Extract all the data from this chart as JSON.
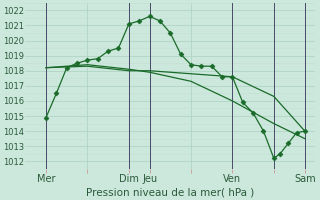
{
  "bg_color": "#cce8dc",
  "grid_color_major": "#b0d4c4",
  "grid_color_minor": "#c4e0d4",
  "line_color": "#1a6b2a",
  "title": "Pression niveau de la mer( hPa )",
  "ylim": [
    1011.5,
    1022.5
  ],
  "yticks": [
    1012,
    1013,
    1014,
    1015,
    1016,
    1017,
    1018,
    1019,
    1020,
    1021,
    1022
  ],
  "xlim": [
    0,
    14
  ],
  "xtick_labels": [
    "Mer",
    "",
    "Dim",
    "Jeu",
    "",
    "Ven",
    "",
    "Sam"
  ],
  "xtick_positions": [
    1,
    3,
    5,
    6,
    8,
    10,
    12,
    13.5
  ],
  "vline_positions": [
    1,
    5,
    6,
    10,
    12,
    13.5
  ],
  "series1_x": [
    1,
    1.5,
    2,
    2.5,
    3,
    3.5,
    4,
    4.5,
    5,
    5.5,
    6,
    6.5,
    7,
    7.5,
    8,
    8.5,
    9,
    9.5,
    10,
    10.5,
    11,
    11.5,
    12,
    12.3,
    12.7,
    13.1,
    13.5
  ],
  "series1_y": [
    1014.9,
    1016.5,
    1018.2,
    1018.5,
    1018.7,
    1018.8,
    1019.3,
    1019.5,
    1021.1,
    1021.3,
    1021.6,
    1021.3,
    1020.5,
    1019.1,
    1018.4,
    1018.3,
    1018.3,
    1017.6,
    1017.6,
    1015.9,
    1015.2,
    1014.0,
    1012.2,
    1012.5,
    1013.2,
    1013.9,
    1014.0
  ],
  "series2_x": [
    1,
    3,
    5,
    6,
    8,
    10,
    12,
    13.5
  ],
  "series2_y": [
    1018.2,
    1018.3,
    1018.0,
    1018.0,
    1017.8,
    1017.6,
    1016.3,
    1014.0
  ],
  "series3_x": [
    1,
    3,
    5,
    6,
    8,
    10,
    12,
    13.5
  ],
  "series3_y": [
    1018.2,
    1018.4,
    1018.1,
    1017.9,
    1017.3,
    1016.0,
    1014.5,
    1013.5
  ],
  "marker_style": "D",
  "marker_size": 2.5,
  "tick_color": "#cc8888",
  "ytick_fontsize": 6,
  "xtick_fontsize": 7,
  "xlabel_fontsize": 7.5
}
